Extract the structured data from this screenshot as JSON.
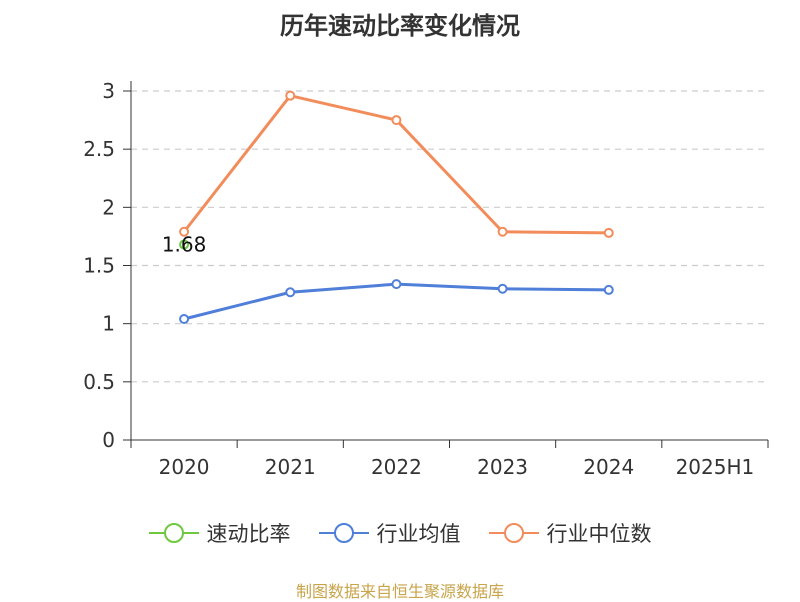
{
  "chart_data": {
    "type": "line",
    "title": "历年速动比率变化情况",
    "categories": [
      "2020",
      "2021",
      "2022",
      "2023",
      "2024",
      "2025H1"
    ],
    "ylim": [
      0,
      3
    ],
    "yticks": [
      "0",
      "0.5",
      "1",
      "1.5",
      "2",
      "2.5",
      "3"
    ],
    "grid": true,
    "legend_position": "bottom",
    "series": [
      {
        "name": "速动比率",
        "color": "#6fc840",
        "values": [
          1.68,
          null,
          null,
          null,
          null,
          null
        ],
        "data_labels": [
          "1.68",
          null,
          null,
          null,
          null,
          null
        ]
      },
      {
        "name": "行业均值",
        "color": "#4f7fd8",
        "values": [
          1.04,
          1.27,
          1.34,
          1.3,
          1.29,
          null
        ]
      },
      {
        "name": "行业中位数",
        "color": "#f28c5a",
        "values": [
          1.79,
          2.96,
          2.75,
          1.79,
          1.78,
          null
        ]
      }
    ],
    "source": "制图数据来自恒生聚源数据库"
  }
}
